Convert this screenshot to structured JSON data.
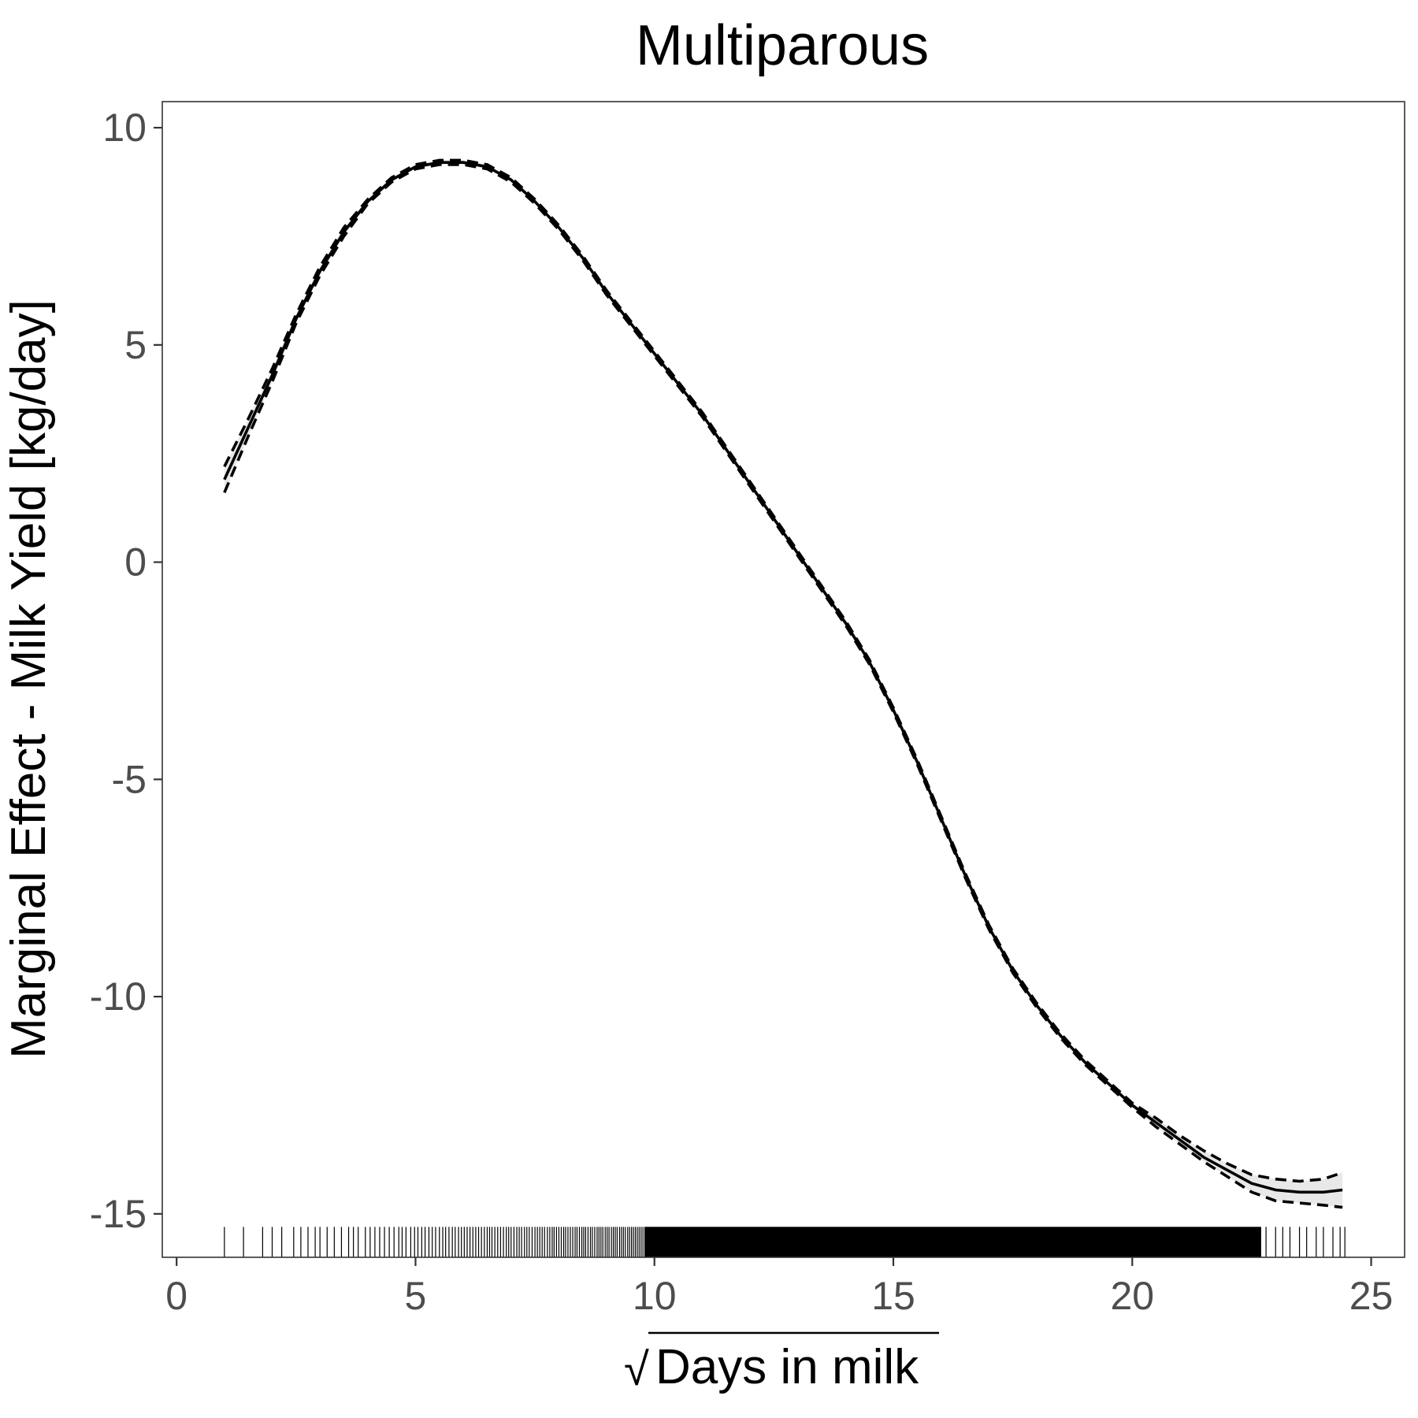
{
  "chart_data": {
    "type": "line",
    "title": "Multiparous",
    "xlabel": "Days in milk",
    "xlabel_radical": "√",
    "ylabel": "Marginal Effect - Milk Yield [kg/day]",
    "xlim": [
      -0.3,
      25.7
    ],
    "ylim": [
      -16.0,
      10.6
    ],
    "x_ticks": [
      0,
      5,
      10,
      15,
      20,
      25
    ],
    "x_tick_labels": [
      "0",
      "5",
      "10",
      "15",
      "20",
      "25"
    ],
    "y_ticks": [
      10,
      5,
      0,
      -5,
      -10,
      -15
    ],
    "y_tick_labels": [
      "10",
      "5",
      "0",
      "-5",
      "-10",
      "-15"
    ],
    "grid": false,
    "legend": "none",
    "series": [
      {
        "role": "fit",
        "style": "solid",
        "x": [
          1.0,
          1.5,
          2.0,
          2.5,
          3.0,
          3.5,
          4.0,
          4.5,
          5.0,
          5.5,
          6.0,
          6.5,
          7.0,
          7.5,
          8.0,
          8.5,
          9.0,
          9.5,
          10.0,
          10.5,
          11.0,
          11.5,
          12.0,
          12.5,
          13.0,
          13.5,
          14.0,
          14.5,
          15.0,
          15.5,
          16.0,
          16.5,
          17.0,
          17.5,
          18.0,
          18.5,
          19.0,
          19.5,
          20.0,
          20.5,
          21.0,
          21.5,
          22.0,
          22.5,
          23.0,
          23.5,
          24.0,
          24.4
        ],
        "y": [
          1.9,
          3.1,
          4.3,
          5.6,
          6.7,
          7.6,
          8.3,
          8.8,
          9.1,
          9.2,
          9.2,
          9.1,
          8.8,
          8.3,
          7.7,
          7.0,
          6.2,
          5.5,
          4.8,
          4.1,
          3.4,
          2.6,
          1.8,
          1.0,
          0.2,
          -0.6,
          -1.4,
          -2.3,
          -3.4,
          -4.6,
          -5.9,
          -7.2,
          -8.4,
          -9.4,
          -10.2,
          -10.9,
          -11.5,
          -12.0,
          -12.5,
          -12.9,
          -13.3,
          -13.7,
          -14.0,
          -14.3,
          -14.45,
          -14.5,
          -14.5,
          -14.45
        ]
      },
      {
        "role": "upper-ci",
        "style": "dashed",
        "x": [
          1.0,
          1.5,
          2.0,
          2.5,
          3.0,
          3.5,
          4.0,
          4.5,
          5.0,
          5.5,
          6.0,
          6.5,
          7.0,
          7.5,
          8.0,
          8.5,
          9.0,
          9.5,
          10.0,
          10.5,
          11.0,
          11.5,
          12.0,
          12.5,
          13.0,
          13.5,
          14.0,
          14.5,
          15.0,
          15.5,
          16.0,
          16.5,
          17.0,
          17.5,
          18.0,
          18.5,
          19.0,
          19.5,
          20.0,
          20.5,
          21.0,
          21.5,
          22.0,
          22.5,
          23.0,
          23.5,
          24.0,
          24.4
        ],
        "y": [
          2.2,
          3.3,
          4.45,
          5.7,
          6.8,
          7.7,
          8.35,
          8.85,
          9.15,
          9.25,
          9.25,
          9.15,
          8.85,
          8.35,
          7.75,
          7.05,
          6.25,
          5.55,
          4.85,
          4.15,
          3.45,
          2.65,
          1.85,
          1.05,
          0.25,
          -0.55,
          -1.35,
          -2.25,
          -3.35,
          -4.55,
          -5.85,
          -7.15,
          -8.35,
          -9.35,
          -10.15,
          -10.85,
          -11.45,
          -11.95,
          -12.45,
          -12.8,
          -13.2,
          -13.55,
          -13.85,
          -14.1,
          -14.2,
          -14.25,
          -14.2,
          -14.05
        ]
      },
      {
        "role": "lower-ci",
        "style": "dashed",
        "x": [
          1.0,
          1.5,
          2.0,
          2.5,
          3.0,
          3.5,
          4.0,
          4.5,
          5.0,
          5.5,
          6.0,
          6.5,
          7.0,
          7.5,
          8.0,
          8.5,
          9.0,
          9.5,
          10.0,
          10.5,
          11.0,
          11.5,
          12.0,
          12.5,
          13.0,
          13.5,
          14.0,
          14.5,
          15.0,
          15.5,
          16.0,
          16.5,
          17.0,
          17.5,
          18.0,
          18.5,
          19.0,
          19.5,
          20.0,
          20.5,
          21.0,
          21.5,
          22.0,
          22.5,
          23.0,
          23.5,
          24.0,
          24.4
        ],
        "y": [
          1.6,
          2.9,
          4.15,
          5.5,
          6.6,
          7.5,
          8.25,
          8.75,
          9.05,
          9.15,
          9.15,
          9.05,
          8.75,
          8.25,
          7.65,
          6.95,
          6.15,
          5.45,
          4.75,
          4.05,
          3.35,
          2.55,
          1.75,
          0.95,
          0.15,
          -0.65,
          -1.45,
          -2.35,
          -3.45,
          -4.65,
          -5.95,
          -7.25,
          -8.45,
          -9.45,
          -10.25,
          -10.95,
          -11.55,
          -12.05,
          -12.55,
          -13.0,
          -13.4,
          -13.8,
          -14.15,
          -14.5,
          -14.7,
          -14.75,
          -14.8,
          -14.85
        ]
      }
    ],
    "rug": {
      "sparse_x": [
        1.0,
        1.4,
        1.8,
        2.0,
        2.2,
        2.45,
        2.6,
        2.75,
        2.9,
        3.0,
        3.15,
        3.3,
        3.45,
        3.6,
        3.7,
        3.8,
        3.95,
        4.05,
        4.15,
        4.25,
        4.35,
        4.45,
        4.55,
        4.65,
        4.72,
        4.8,
        4.9,
        4.98,
        5.05,
        5.13,
        5.2,
        5.28,
        5.35,
        5.42,
        5.5,
        5.57,
        5.63,
        5.7,
        5.77,
        5.83,
        5.9,
        5.96,
        6.02,
        6.08,
        6.14,
        6.2,
        6.26,
        6.32,
        6.38,
        6.44,
        6.5,
        6.55,
        6.6,
        6.66,
        6.72,
        6.78,
        6.84,
        6.9,
        6.95,
        7.0,
        7.06,
        7.12,
        7.17,
        7.22,
        7.28,
        7.33,
        7.38,
        7.44,
        7.5,
        7.55,
        7.6,
        7.65,
        7.7,
        7.76,
        7.81,
        7.86,
        7.9,
        7.95,
        8.0,
        8.05,
        8.1,
        8.14,
        8.19,
        8.24,
        8.29,
        8.34,
        8.38,
        8.43,
        8.48,
        8.52,
        8.56,
        8.61,
        8.66,
        8.7,
        8.75,
        8.8,
        8.84,
        8.88,
        8.92,
        8.97,
        9.01,
        9.05,
        9.1,
        9.14,
        9.18,
        9.22,
        9.27,
        9.31,
        9.35,
        9.39,
        9.44,
        9.48,
        9.52,
        9.56,
        9.6,
        9.64,
        9.68,
        9.72,
        9.76
      ],
      "dense_range": [
        9.8,
        22.7
      ],
      "dense_step": 0.012,
      "tail_x": [
        22.8,
        23.0,
        23.15,
        23.3,
        23.5,
        23.65,
        23.85,
        24.0,
        24.2,
        24.35,
        24.45
      ],
      "y_from": -15.3,
      "y_to": -16.0
    }
  }
}
